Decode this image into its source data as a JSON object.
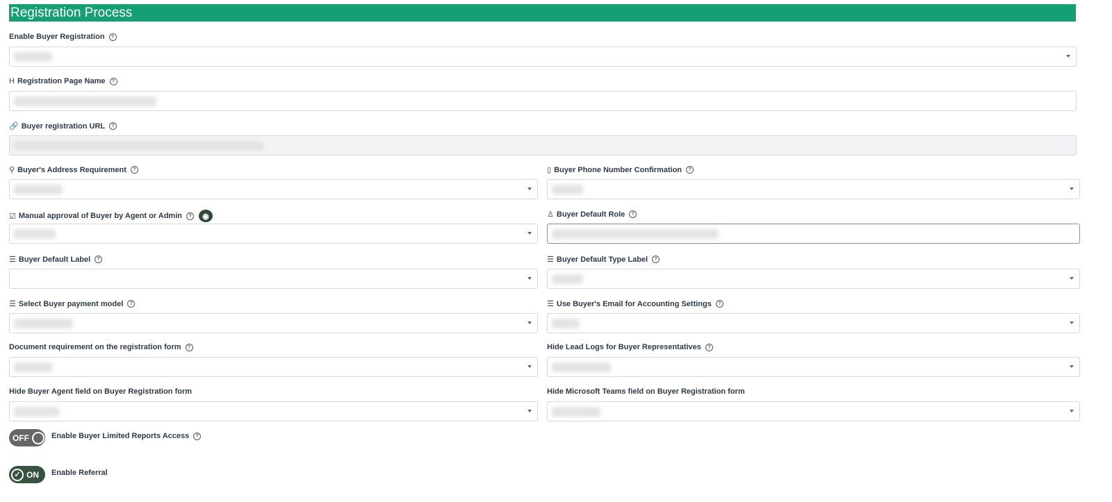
{
  "header": {
    "title": "Registration Process"
  },
  "fields": [
    {
      "label": "Enable Buyer Registration",
      "icon": "",
      "help": true,
      "type": "select",
      "value": ""
    },
    {
      "label": "Registration Page Name",
      "icon": "heading-icon",
      "help": true,
      "type": "text",
      "value": ""
    },
    {
      "label": "Buyer registration URL",
      "icon": "link-icon",
      "help": true,
      "type": "readonly",
      "value": ""
    },
    {
      "label": "Buyer's Address Requirement",
      "icon": "map-pin-icon",
      "help": true,
      "type": "select",
      "value": ""
    },
    {
      "label": "Buyer Phone Number Confirmation",
      "icon": "mobile-phone-icon",
      "help": true,
      "type": "select",
      "value": ""
    },
    {
      "label": "Manual approval of Buyer by Agent or Admin",
      "icon": "checkbox-icon",
      "help": true,
      "type": "select",
      "value": "",
      "extra": "eye-icon"
    },
    {
      "label": "Buyer Default Role",
      "icon": "user-icon",
      "help": true,
      "type": "text",
      "value": ""
    },
    {
      "label": "Buyer Default Label",
      "icon": "list-icon",
      "help": true,
      "type": "select",
      "value": ""
    },
    {
      "label": "Buyer Default Type Label",
      "icon": "list-icon",
      "help": true,
      "type": "select",
      "value": ""
    },
    {
      "label": "Select Buyer payment model",
      "icon": "list-icon",
      "help": true,
      "type": "select",
      "value": ""
    },
    {
      "label": "Use Buyer's Email for Accounting Settings",
      "icon": "list-icon",
      "help": true,
      "type": "select",
      "value": ""
    },
    {
      "label": "Document requirement on the registration form",
      "icon": "",
      "help": true,
      "type": "select",
      "value": ""
    },
    {
      "label": "Hide Lead Logs for Buyer Representatives",
      "icon": "",
      "help": true,
      "type": "select",
      "value": ""
    },
    {
      "label": "Hide Buyer Agent field on Buyer Registration form",
      "icon": "",
      "help": false,
      "type": "select",
      "value": ""
    },
    {
      "label": "Hide Microsoft Teams field on Buyer Registration form",
      "icon": "",
      "help": false,
      "type": "select",
      "value": ""
    }
  ],
  "toggles": [
    {
      "label": "Enable Buyer Limited Reports Access",
      "state": "OFF",
      "help": true
    },
    {
      "label": "Enable Referral",
      "state": "ON",
      "help": false
    }
  ],
  "colors": {
    "header": "#14a073",
    "toggle_on": "#36533f",
    "toggle_off": "#666666"
  }
}
